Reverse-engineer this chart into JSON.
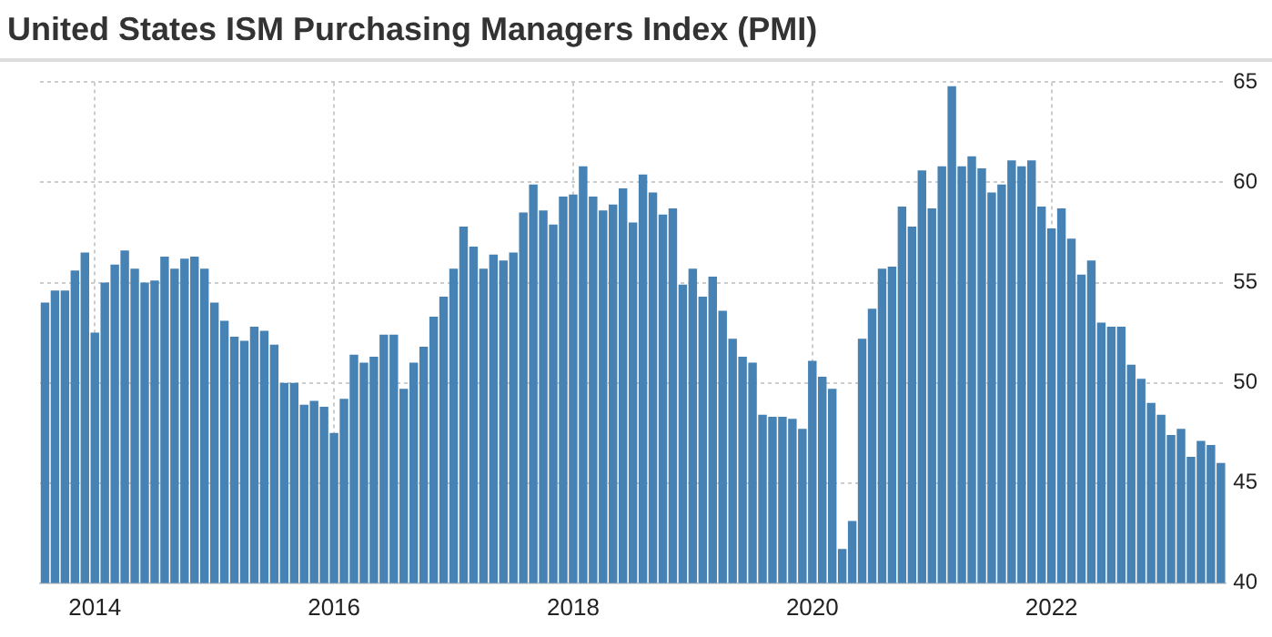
{
  "chart_data": {
    "type": "bar",
    "title": "United States ISM Purchasing Managers Index (PMI)",
    "categories": [
      null,
      null,
      null,
      null,
      null,
      "2014",
      null,
      null,
      null,
      null,
      null,
      null,
      null,
      null,
      null,
      null,
      null,
      null,
      null,
      null,
      null,
      null,
      null,
      null,
      null,
      null,
      null,
      null,
      null,
      "2016",
      null,
      null,
      null,
      null,
      null,
      null,
      null,
      null,
      null,
      null,
      null,
      null,
      null,
      null,
      null,
      null,
      null,
      null,
      null,
      null,
      null,
      null,
      null,
      "2018",
      null,
      null,
      null,
      null,
      null,
      null,
      null,
      null,
      null,
      null,
      null,
      null,
      null,
      null,
      null,
      null,
      null,
      null,
      null,
      null,
      null,
      null,
      null,
      "2020",
      null,
      null,
      null,
      null,
      null,
      null,
      null,
      null,
      null,
      null,
      null,
      null,
      null,
      null,
      null,
      null,
      null,
      null,
      null,
      null,
      null,
      null,
      null,
      "2022",
      null,
      null,
      null,
      null,
      null,
      null,
      null,
      null,
      null,
      null,
      null,
      null,
      null,
      null,
      null,
      null,
      null
    ],
    "values": [
      54.0,
      54.6,
      54.6,
      55.6,
      56.5,
      52.5,
      55.0,
      55.9,
      56.6,
      55.7,
      55.0,
      55.1,
      56.3,
      55.7,
      56.2,
      56.3,
      55.7,
      54.0,
      53.1,
      52.3,
      52.1,
      52.8,
      52.6,
      51.9,
      50.0,
      50.0,
      48.9,
      49.1,
      48.8,
      47.5,
      49.2,
      51.4,
      51.0,
      51.3,
      52.4,
      52.4,
      49.7,
      51.0,
      51.8,
      53.3,
      54.3,
      55.7,
      57.8,
      56.8,
      55.7,
      56.4,
      56.1,
      56.5,
      58.5,
      59.9,
      58.6,
      57.9,
      59.3,
      59.4,
      60.8,
      59.3,
      58.6,
      58.9,
      59.7,
      58.0,
      60.4,
      59.5,
      58.4,
      58.7,
      54.9,
      55.7,
      54.3,
      55.3,
      53.6,
      52.2,
      51.3,
      51.0,
      48.4,
      48.3,
      48.3,
      48.2,
      47.7,
      51.1,
      50.3,
      49.7,
      41.7,
      43.1,
      52.2,
      53.7,
      55.7,
      55.8,
      58.8,
      57.8,
      60.6,
      58.7,
      60.8,
      64.8,
      60.8,
      61.3,
      60.7,
      59.5,
      59.9,
      61.1,
      60.8,
      61.1,
      58.8,
      57.7,
      58.7,
      57.2,
      55.4,
      56.1,
      53.0,
      52.8,
      52.8,
      50.9,
      50.2,
      49.0,
      48.4,
      47.4,
      47.7,
      46.3,
      47.1,
      46.9,
      46.0
    ],
    "color": "#4682b4",
    "ylim": [
      40,
      65
    ],
    "yticks": [
      40,
      45,
      50,
      55,
      60,
      65
    ],
    "grid": true
  }
}
